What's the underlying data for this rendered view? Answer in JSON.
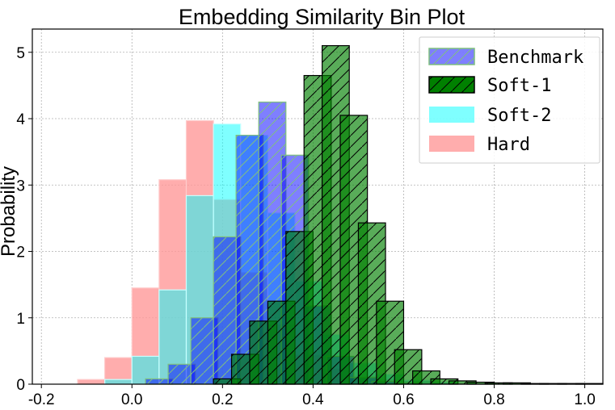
{
  "chart_data": {
    "type": "bar",
    "title": "Embedding Similarity Bin Plot",
    "xlabel": "",
    "ylabel": "Probability",
    "xlim": [
      -0.22,
      1.04
    ],
    "ylim": [
      0,
      5.35
    ],
    "xticks": [
      -0.2,
      0.0,
      0.2,
      0.4,
      0.6,
      0.8,
      1.0
    ],
    "xtick_labels": [
      "-0.2",
      "0.0",
      "0.2",
      "0.4",
      "0.6",
      "0.8",
      "1.0"
    ],
    "yticks": [
      0,
      1,
      2,
      3,
      4,
      5
    ],
    "ytick_labels": [
      "0",
      "1",
      "2",
      "3",
      "4",
      "5"
    ],
    "grid": true,
    "legend_position": "top-right",
    "bin_width": 0.06,
    "series": [
      {
        "name": "Hard",
        "style": "solid",
        "fill": "#ff9999",
        "opacity": 0.8,
        "edge": "#ffcccc",
        "bin_starts": [
          -0.12,
          -0.06,
          0.0,
          0.06,
          0.12,
          0.18,
          0.24,
          0.3,
          0.36,
          0.42,
          0.48,
          0.54,
          0.6,
          0.66
        ],
        "values": [
          0.07,
          0.4,
          1.45,
          3.08,
          3.97,
          2.78,
          1.68,
          0.9,
          0.44,
          0.23,
          0.12,
          0.07,
          0.04,
          0.02
        ]
      },
      {
        "name": "Soft-2",
        "style": "solid",
        "fill": "#00ffff",
        "opacity": 0.5,
        "edge": "#c8ffff",
        "bin_starts": [
          -0.06,
          0.0,
          0.06,
          0.12,
          0.18,
          0.24,
          0.3,
          0.36,
          0.42,
          0.48,
          0.54,
          0.6,
          0.66
        ],
        "values": [
          0.07,
          0.42,
          1.42,
          2.84,
          3.92,
          3.75,
          2.58,
          1.55,
          0.75,
          0.32,
          0.15,
          0.06,
          0.03
        ]
      },
      {
        "name": "Benchmark",
        "style": "hatch",
        "fill": "#0000ff",
        "opacity": 0.5,
        "edge": "#7fbf7f",
        "bin_starts": [
          0.03,
          0.08,
          0.13,
          0.18,
          0.23,
          0.28,
          0.33,
          0.38,
          0.43,
          0.48,
          0.53,
          0.58
        ],
        "values": [
          0.08,
          0.3,
          1.0,
          2.22,
          3.75,
          4.25,
          3.45,
          1.18,
          0.42,
          0.1,
          0.04,
          0.02
        ]
      },
      {
        "name": "Soft-1",
        "style": "hatch",
        "fill": "#008000",
        "opacity": 0.65,
        "edge": "#000000",
        "bin_starts": [
          0.18,
          0.22,
          0.26,
          0.3,
          0.34,
          0.38,
          0.42,
          0.46,
          0.5,
          0.54,
          0.58,
          0.62,
          0.66,
          0.7,
          0.74,
          0.78,
          0.82,
          0.86,
          0.9,
          0.94,
          0.98
        ],
        "values": [
          0.08,
          0.45,
          0.95,
          1.25,
          2.3,
          4.65,
          5.1,
          4.05,
          2.43,
          1.25,
          0.52,
          0.2,
          0.08,
          0.05,
          0.03,
          0.02,
          0.02,
          0.01,
          0.01,
          0.01,
          0.01
        ]
      }
    ],
    "legend_order": [
      "Benchmark",
      "Soft-1",
      "Soft-2",
      "Hard"
    ]
  }
}
